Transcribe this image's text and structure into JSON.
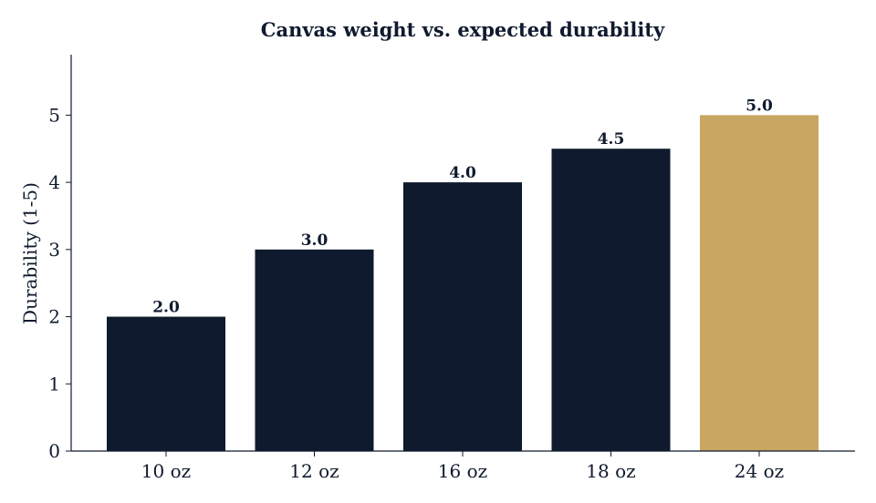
{
  "chart_data": {
    "type": "bar",
    "title": "Canvas weight vs. expected durability",
    "xlabel": "",
    "ylabel": "Durability (1-5)",
    "categories": [
      "10 oz",
      "12 oz",
      "16 oz",
      "18 oz",
      "24 oz"
    ],
    "values": [
      2.0,
      3.0,
      4.0,
      4.5,
      5.0
    ],
    "data_labels": [
      "2.0",
      "3.0",
      "4.0",
      "4.5",
      "5.0"
    ],
    "yticks": [
      0,
      1,
      2,
      3,
      4,
      5
    ],
    "ylim": [
      0,
      5.9
    ],
    "grid": false,
    "highlight_index": 4,
    "colors": {
      "bar": "#0f1a2e",
      "highlight": "#c9a661",
      "text": "#0f1a2e",
      "axis": "#0f1a2e"
    }
  }
}
